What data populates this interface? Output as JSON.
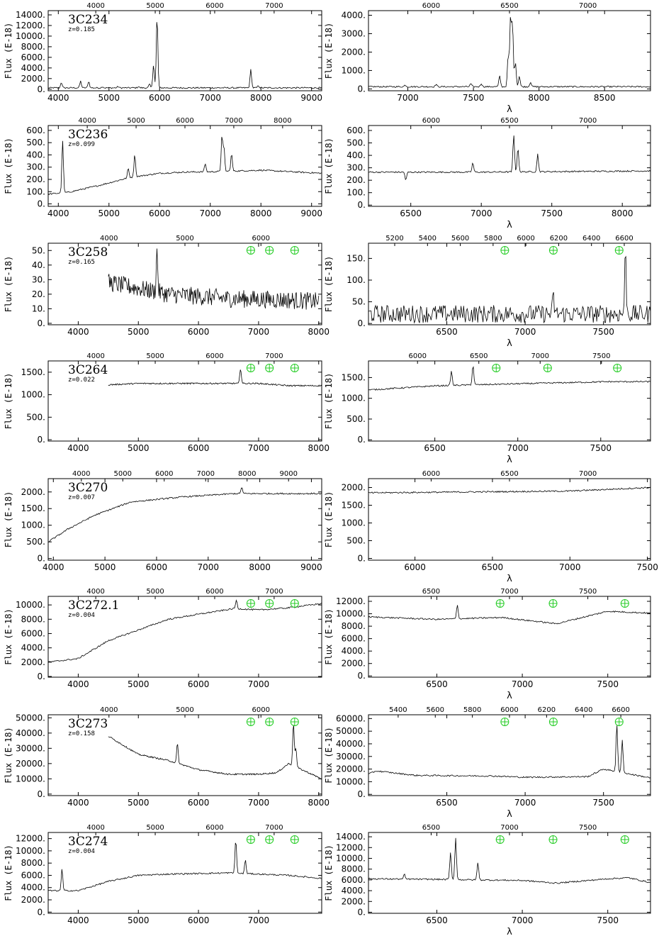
{
  "chart_data": [
    {
      "type": "line",
      "object": "3C234",
      "redshift": "z=0.185",
      "ylabel": "Flux (E-18)",
      "xlim": [
        3800,
        9200
      ],
      "ylim": [
        -300,
        14800
      ],
      "xticks": [
        "4000",
        "5000",
        "6000",
        "7000",
        "8000",
        "9000"
      ],
      "yticks": [
        "0.",
        "2000.",
        "4000.",
        "6000.",
        "8000.",
        "10000.",
        "12000.",
        "14000."
      ],
      "top_ticks": [
        "4000",
        "5000",
        "6000",
        "7000"
      ],
      "baseline": [
        [
          3800,
          250
        ],
        [
          9200,
          250
        ]
      ],
      "lines": [
        [
          4060,
          1300
        ],
        [
          4440,
          1500
        ],
        [
          4600,
          1500
        ],
        [
          4870,
          500
        ],
        [
          5180,
          500
        ],
        [
          5580,
          500
        ],
        [
          5800,
          900
        ],
        [
          5880,
          4700
        ],
        [
          5950,
          13900
        ],
        [
          7800,
          3700
        ],
        [
          7950,
          700
        ]
      ],
      "telluric": []
    },
    {
      "type": "line",
      "ylabel": "Flux (E-18)",
      "xlabel": "λ",
      "xlim": [
        6700,
        8850
      ],
      "ylim": [
        -100,
        4250
      ],
      "xticks": [
        "7000",
        "7500",
        "8000",
        "8500"
      ],
      "yticks": [
        "0.",
        "1000.",
        "2000.",
        "3000.",
        "4000."
      ],
      "top_ticks": [
        "6000",
        "6500",
        "7000"
      ],
      "baseline": [
        [
          6700,
          120
        ],
        [
          8850,
          120
        ]
      ],
      "lines": [
        [
          6980,
          220
        ],
        [
          7215,
          250
        ],
        [
          7480,
          280
        ],
        [
          7560,
          300
        ],
        [
          7700,
          700
        ],
        [
          7765,
          1800
        ],
        [
          7783,
          3850
        ],
        [
          7798,
          3500
        ],
        [
          7820,
          1500
        ],
        [
          7850,
          700
        ],
        [
          7935,
          380
        ]
      ],
      "telluric": []
    },
    {
      "type": "line",
      "object": "3C236",
      "redshift": "z=0.099",
      "ylabel": "Flux (E-18)",
      "xlim": [
        3800,
        9200
      ],
      "ylim": [
        -20,
        640
      ],
      "xticks": [
        "4000",
        "5000",
        "6000",
        "7000",
        "8000",
        "9000"
      ],
      "yticks": [
        "0.",
        "100.",
        "200.",
        "300.",
        "400.",
        "500.",
        "600."
      ],
      "top_ticks": [
        "4000",
        "5000",
        "6000",
        "7000",
        "8000"
      ],
      "baseline": [
        [
          3800,
          80
        ],
        [
          4200,
          95
        ],
        [
          4800,
          150
        ],
        [
          5400,
          215
        ],
        [
          6000,
          250
        ],
        [
          6500,
          260
        ],
        [
          7000,
          262
        ],
        [
          8000,
          275
        ],
        [
          9200,
          250
        ]
      ],
      "lines": [
        [
          4085,
          520
        ],
        [
          5380,
          290
        ],
        [
          5510,
          410
        ],
        [
          6900,
          330
        ],
        [
          7230,
          560
        ],
        [
          7270,
          460
        ],
        [
          7420,
          410
        ]
      ],
      "telluric": []
    },
    {
      "type": "line",
      "ylabel": "Flux (E-18)",
      "xlabel": "λ",
      "xlim": [
        6200,
        8200
      ],
      "ylim": [
        -10,
        640
      ],
      "xticks": [
        "6500",
        "7000",
        "7500",
        "8000"
      ],
      "yticks": [
        "0.",
        "100.",
        "200.",
        "300.",
        "400.",
        "500.",
        "600."
      ],
      "top_ticks": [
        "6000",
        "6500",
        "7000"
      ],
      "baseline": [
        [
          6200,
          265
        ],
        [
          7000,
          265
        ],
        [
          8200,
          275
        ]
      ],
      "lines": [
        [
          6465,
          200
        ],
        [
          6940,
          340
        ],
        [
          7230,
          565
        ],
        [
          7260,
          460
        ],
        [
          7400,
          410
        ]
      ],
      "telluric": []
    },
    {
      "type": "line",
      "object": "3C258",
      "redshift": "z=0.165",
      "ylabel": "Flux (E-18)",
      "xlim": [
        3500,
        8050
      ],
      "ylim": [
        -1,
        55
      ],
      "xticks": [
        "4000",
        "5000",
        "6000",
        "7000",
        "8000"
      ],
      "yticks": [
        "0.",
        "10.",
        "20.",
        "30.",
        "40.",
        "50."
      ],
      "top_ticks": [
        "4000",
        "5000",
        "6000"
      ],
      "baseline": [
        [
          4500,
          28
        ],
        [
          5500,
          20
        ],
        [
          6500,
          17
        ],
        [
          7500,
          16
        ],
        [
          8000,
          15
        ]
      ],
      "lines": [
        [
          5310,
          49
        ]
      ],
      "telluric": [
        6870,
        7180,
        7600
      ]
    },
    {
      "type": "line",
      "ylabel": "Flux (E-18)",
      "xlabel": "λ",
      "xlim": [
        6000,
        7800
      ],
      "ylim": [
        -3,
        185
      ],
      "xticks": [
        "6500",
        "7000",
        "7500"
      ],
      "yticks": [
        "0.",
        "50.",
        "100.",
        "150."
      ],
      "top_ticks": [
        "5200",
        "5400",
        "5600",
        "5800",
        "6000",
        "6200",
        "6400",
        "6600"
      ],
      "baseline": [
        [
          6000,
          22
        ],
        [
          7800,
          22
        ]
      ],
      "lines": [
        [
          7180,
          60
        ],
        [
          7640,
          160
        ]
      ],
      "telluric": [
        6870,
        7180,
        7600
      ]
    },
    {
      "type": "line",
      "object": "3C264",
      "redshift": "z=0.022",
      "ylabel": "Flux (E-18)",
      "xlim": [
        3500,
        8050
      ],
      "ylim": [
        -30,
        1750
      ],
      "xticks": [
        "4000",
        "5000",
        "6000",
        "7000",
        "8000"
      ],
      "yticks": [
        "0.",
        "500.",
        "1000.",
        "1500."
      ],
      "top_ticks": [
        "4000",
        "5000",
        "6000",
        "7000"
      ],
      "baseline": [
        [
          4500,
          1220
        ],
        [
          5000,
          1250
        ],
        [
          6000,
          1250
        ],
        [
          7000,
          1250
        ],
        [
          7500,
          1200
        ],
        [
          8050,
          1200
        ]
      ],
      "lines": [
        [
          6700,
          1580
        ]
      ],
      "telluric": [
        6870,
        7180,
        7600
      ]
    },
    {
      "type": "line",
      "ylabel": "Flux (E-18)",
      "xlabel": "λ",
      "xlim": [
        6100,
        7800
      ],
      "ylim": [
        -30,
        1900
      ],
      "xticks": [
        "6500",
        "7000",
        "7500"
      ],
      "yticks": [
        "0.",
        "500.",
        "1000.",
        "1500."
      ],
      "top_ticks": [
        "6000",
        "6500",
        "7000",
        "7500"
      ],
      "baseline": [
        [
          6100,
          1200
        ],
        [
          6500,
          1300
        ],
        [
          7000,
          1350
        ],
        [
          7550,
          1400
        ],
        [
          7800,
          1400
        ]
      ],
      "lines": [
        [
          6600,
          1650
        ],
        [
          6730,
          1800
        ]
      ],
      "telluric": [
        6870,
        7180,
        7600
      ]
    },
    {
      "type": "line",
      "object": "3C270",
      "redshift": "z=0.007",
      "ylabel": "Flux (E-18)",
      "xlim": [
        3900,
        9200
      ],
      "ylim": [
        -50,
        2400
      ],
      "xticks": [
        "4000",
        "5000",
        "6000",
        "7000",
        "8000",
        "9000"
      ],
      "yticks": [
        "0.",
        "500.",
        "1000.",
        "1500.",
        "2000."
      ],
      "top_ticks": [
        "4000",
        "5000",
        "6000",
        "7000",
        "8000",
        "9000"
      ],
      "baseline": [
        [
          3900,
          500
        ],
        [
          4300,
          900
        ],
        [
          4800,
          1300
        ],
        [
          5500,
          1700
        ],
        [
          6500,
          1850
        ],
        [
          7500,
          1950
        ],
        [
          9200,
          1950
        ]
      ],
      "lines": [
        [
          7650,
          2150
        ]
      ],
      "telluric": []
    },
    {
      "type": "line",
      "ylabel": "Flux (E-18)",
      "xlabel": "λ",
      "xlim": [
        5700,
        7520
      ],
      "ylim": [
        -50,
        2250
      ],
      "xticks": [
        "6000",
        "6500",
        "7000",
        "7500"
      ],
      "yticks": [
        "0.",
        "500.",
        "1000.",
        "1500.",
        "2000."
      ],
      "top_ticks": [
        "6000",
        "6500",
        "7000"
      ],
      "baseline": [
        [
          5700,
          1850
        ],
        [
          6500,
          1880
        ],
        [
          7000,
          1900
        ],
        [
          7520,
          2000
        ]
      ],
      "lines": [],
      "telluric": []
    },
    {
      "type": "line",
      "object": "3C272.1",
      "redshift": "z=0.004",
      "ylabel": "Flux (E-18)",
      "xlim": [
        3500,
        8050
      ],
      "ylim": [
        -100,
        11200
      ],
      "xticks": [
        "4000",
        "5000",
        "6000",
        "7000"
      ],
      "yticks": [
        "0.",
        "2000.",
        "4000.",
        "6000.",
        "8000.",
        "10000."
      ],
      "top_ticks": [
        "4000",
        "5000",
        "6000",
        "7000"
      ],
      "baseline": [
        [
          3500,
          2000
        ],
        [
          4000,
          2500
        ],
        [
          4500,
          5000
        ],
        [
          5000,
          6500
        ],
        [
          5500,
          8000
        ],
        [
          6000,
          8700
        ],
        [
          6600,
          9500
        ],
        [
          7000,
          9300
        ],
        [
          7500,
          9600
        ],
        [
          8050,
          10200
        ]
      ],
      "lines": [
        [
          6630,
          10700
        ]
      ],
      "telluric": [
        6870,
        7180,
        7600
      ]
    },
    {
      "type": "line",
      "ylabel": "Flux (E-18)",
      "xlabel": "λ",
      "xlim": [
        6100,
        7750
      ],
      "ylim": [
        -200,
        12800
      ],
      "xticks": [
        "6500",
        "7000",
        "7500"
      ],
      "yticks": [
        "0.",
        "2000.",
        "4000.",
        "6000.",
        "8000.",
        "10000.",
        "12000."
      ],
      "top_ticks": [
        "6500",
        "7000",
        "7500"
      ],
      "baseline": [
        [
          6100,
          9500
        ],
        [
          6500,
          9100
        ],
        [
          6880,
          9400
        ],
        [
          7200,
          8400
        ],
        [
          7500,
          10400
        ],
        [
          7750,
          10100
        ]
      ],
      "lines": [
        [
          6620,
          11500
        ]
      ],
      "telluric": [
        6870,
        7180,
        7600
      ]
    },
    {
      "type": "line",
      "object": "3C273",
      "redshift": "z=0.158",
      "ylabel": "Flux (E-18)",
      "xlim": [
        3500,
        8050
      ],
      "ylim": [
        -1000,
        52000
      ],
      "xticks": [
        "4000",
        "5000",
        "6000",
        "7000",
        "8000"
      ],
      "yticks": [
        "0.",
        "10000.",
        "20000.",
        "30000.",
        "40000.",
        "50000."
      ],
      "top_ticks": [
        "4000",
        "5000",
        "6000"
      ],
      "baseline": [
        [
          4500,
          38000
        ],
        [
          5000,
          26000
        ],
        [
          5500,
          22000
        ],
        [
          6000,
          16000
        ],
        [
          6500,
          13000
        ],
        [
          7000,
          13000
        ],
        [
          7300,
          14000
        ],
        [
          7500,
          20000
        ],
        [
          8050,
          10000
        ]
      ],
      "lines": [
        [
          5650,
          33000
        ],
        [
          7580,
          46000
        ],
        [
          7620,
          30000
        ]
      ],
      "telluric": [
        6870,
        7180,
        7600
      ]
    },
    {
      "type": "line",
      "ylabel": "Flux (E-18)",
      "xlabel": "λ",
      "xlim": [
        6000,
        7800
      ],
      "ylim": [
        -1000,
        63000
      ],
      "xticks": [
        "6500",
        "7000",
        "7500"
      ],
      "yticks": [
        "0.",
        "10000.",
        "20000.",
        "30000.",
        "40000.",
        "50000.",
        "60000."
      ],
      "top_ticks": [
        "5400",
        "5600",
        "5800",
        "6000",
        "6200",
        "6400",
        "6600"
      ],
      "baseline": [
        [
          6000,
          16000
        ],
        [
          6050,
          18500
        ],
        [
          6300,
          15000
        ],
        [
          6800,
          14500
        ],
        [
          7000,
          13500
        ],
        [
          7400,
          14000
        ],
        [
          7500,
          20000
        ],
        [
          7800,
          13000
        ]
      ],
      "lines": [
        [
          7585,
          56000
        ],
        [
          7620,
          43000
        ]
      ],
      "telluric": [
        6870,
        7180,
        7600
      ]
    },
    {
      "type": "line",
      "object": "3C274",
      "redshift": "z=0.004",
      "ylabel": "Flux (E-18)",
      "xlim": [
        3500,
        8050
      ],
      "ylim": [
        -200,
        13000
      ],
      "xticks": [
        "4000",
        "5000",
        "6000",
        "7000"
      ],
      "yticks": [
        "0.",
        "2000.",
        "4000.",
        "6000.",
        "8000.",
        "10000.",
        "12000."
      ],
      "top_ticks": [
        "4000",
        "5000",
        "6000",
        "7000"
      ],
      "baseline": [
        [
          3500,
          3500
        ],
        [
          4000,
          3500
        ],
        [
          4500,
          5000
        ],
        [
          5000,
          6000
        ],
        [
          5500,
          6200
        ],
        [
          6000,
          6300
        ],
        [
          6500,
          6400
        ],
        [
          7000,
          6200
        ],
        [
          7500,
          6000
        ],
        [
          8050,
          5500
        ]
      ],
      "lines": [
        [
          3730,
          7000
        ],
        [
          6620,
          12000
        ],
        [
          6780,
          8500
        ]
      ],
      "telluric": [
        6870,
        7180,
        7600
      ]
    },
    {
      "type": "line",
      "ylabel": "Flux (E-18)",
      "xlabel": "λ",
      "xlim": [
        6100,
        7750
      ],
      "ylim": [
        -200,
        14800
      ],
      "xticks": [
        "6500",
        "7000",
        "7500"
      ],
      "yticks": [
        "0.",
        "2000.",
        "4000.",
        "6000.",
        "8000.",
        "10000.",
        "12000.",
        "14000."
      ],
      "top_ticks": [
        "6500",
        "7000",
        "7500"
      ],
      "baseline": [
        [
          6100,
          6200
        ],
        [
          6500,
          6100
        ],
        [
          7000,
          5900
        ],
        [
          7200,
          5400
        ],
        [
          7500,
          6200
        ],
        [
          7620,
          6400
        ],
        [
          7750,
          5500
        ]
      ],
      "lines": [
        [
          6580,
          11000
        ],
        [
          6610,
          13800
        ],
        [
          6740,
          9300
        ],
        [
          6310,
          7000
        ]
      ],
      "telluric": [
        6870,
        7180,
        7600
      ]
    }
  ]
}
